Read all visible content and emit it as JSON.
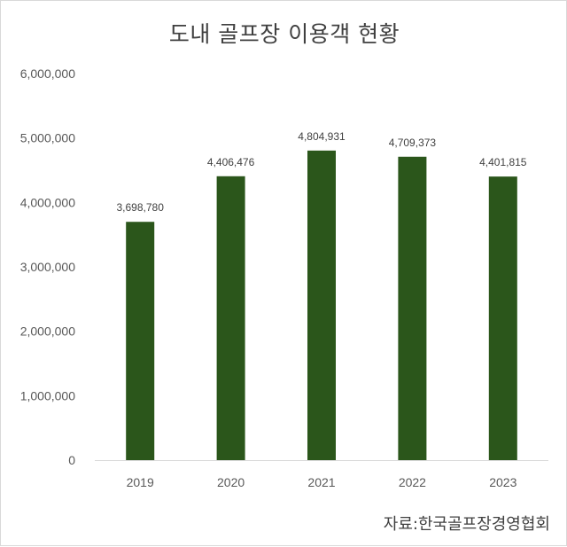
{
  "colors": {
    "bar": "#2b561b",
    "axis": "#d9d9d9",
    "text": "#595959"
  },
  "chart_data": {
    "type": "bar",
    "title": "도내 골프장 이용객 현황",
    "xlabel": "",
    "ylabel": "",
    "categories": [
      "2019",
      "2020",
      "2021",
      "2022",
      "2023"
    ],
    "values": [
      3698780,
      4406476,
      4804931,
      4709373,
      4401815
    ],
    "value_labels": [
      "3,698,780",
      "4,406,476",
      "4,804,931",
      "4,709,373",
      "4,401,815"
    ],
    "ylim": [
      0,
      6000000
    ],
    "y_ticks": [
      0,
      1000000,
      2000000,
      3000000,
      4000000,
      5000000,
      6000000
    ],
    "y_tick_labels": [
      "0",
      "1,000,000",
      "2,000,000",
      "3,000,000",
      "4,000,000",
      "5,000,000",
      "6,000,000"
    ],
    "grid": false,
    "legend": "none"
  },
  "source_note": "자료:한국골프장경영협회"
}
